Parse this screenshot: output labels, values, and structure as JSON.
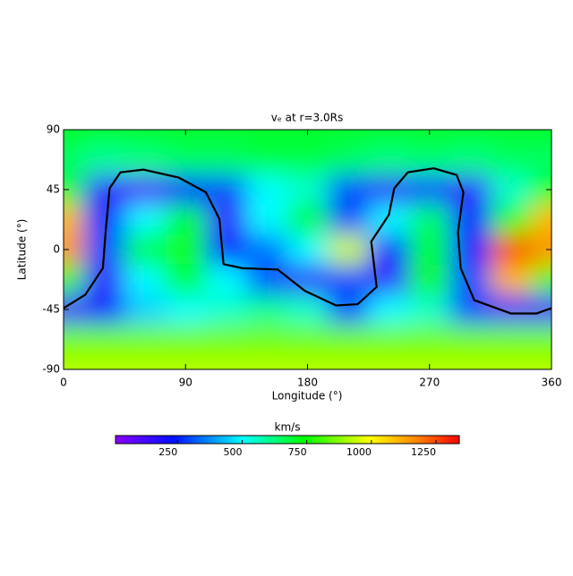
{
  "chart_data": {
    "type": "heatmap",
    "title": "vₑ at r=3.0Rs",
    "x_label": "Longitude (°)",
    "y_label": "Latitude (°)",
    "x": [
      0,
      30,
      60,
      90,
      120,
      150,
      180,
      210,
      240,
      270,
      300,
      330,
      360
    ],
    "y": [
      90,
      67.5,
      45,
      22.5,
      0,
      -22.5,
      -45,
      -67.5,
      -90
    ],
    "z": [
      [
        700,
        700,
        700,
        700,
        700,
        700,
        700,
        700,
        700,
        700,
        700,
        700,
        700
      ],
      [
        650,
        600,
        620,
        650,
        650,
        680,
        680,
        650,
        620,
        640,
        620,
        650,
        650
      ],
      [
        700,
        150,
        100,
        250,
        300,
        500,
        550,
        300,
        150,
        300,
        150,
        550,
        700
      ],
      [
        1100,
        250,
        500,
        700,
        150,
        500,
        700,
        300,
        500,
        650,
        250,
        750,
        1100
      ],
      [
        1150,
        300,
        700,
        750,
        250,
        350,
        500,
        950,
        250,
        700,
        250,
        1250,
        1150
      ],
      [
        800,
        150,
        500,
        700,
        500,
        300,
        150,
        300,
        150,
        750,
        300,
        1100,
        800
      ],
      [
        100,
        250,
        450,
        500,
        550,
        600,
        550,
        300,
        500,
        550,
        300,
        100,
        100
      ],
      [
        850,
        850,
        850,
        850,
        850,
        850,
        850,
        850,
        850,
        850,
        850,
        850,
        850
      ],
      [
        920,
        920,
        920,
        920,
        920,
        920,
        920,
        920,
        920,
        920,
        920,
        920,
        920
      ]
    ],
    "xlim": [
      0,
      360
    ],
    "xticks": [
      0,
      90,
      180,
      270,
      360
    ],
    "ylim": [
      -90,
      90
    ],
    "yticks": [
      -90,
      -45,
      0,
      45,
      90
    ],
    "colorbar_label": "km/s",
    "clim": [
      10,
      1340
    ],
    "cticks": [
      250,
      500,
      750,
      1000,
      1250
    ],
    "colorscale": [
      [
        0,
        "#8a00ff"
      ],
      [
        0.17,
        "#0010ff"
      ],
      [
        0.37,
        "#00ffff"
      ],
      [
        0.55,
        "#00ff00"
      ],
      [
        0.74,
        "#ffff00"
      ],
      [
        0.88,
        "#ff8000"
      ],
      [
        1,
        "#ff0000"
      ]
    ],
    "contour": {
      "color": "#000000",
      "x": [
        0,
        16,
        29,
        31,
        34,
        42,
        59,
        85,
        105,
        115,
        118,
        132,
        158,
        178,
        201,
        217,
        231,
        227,
        240,
        244,
        254,
        273,
        290,
        295,
        291,
        293,
        303,
        330,
        349,
        360
      ],
      "y": [
        -44,
        -34,
        -14,
        13,
        46,
        58,
        60,
        54,
        43,
        23,
        -11,
        -14,
        -15,
        -31,
        -42,
        -41,
        -28,
        6,
        26,
        46,
        58,
        61,
        56,
        43,
        13,
        -14,
        -38,
        -48,
        -48,
        -44
      ]
    }
  }
}
